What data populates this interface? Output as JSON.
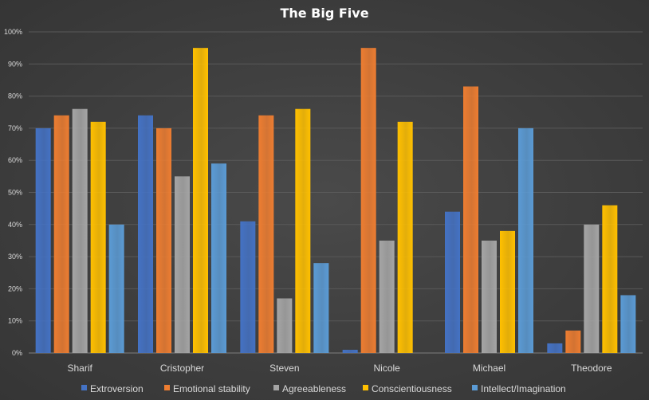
{
  "chart_data": {
    "type": "bar",
    "title": "The Big Five",
    "xlabel": "",
    "ylabel": "",
    "ylim": [
      0,
      100
    ],
    "yticks": [
      "0%",
      "10%",
      "20%",
      "30%",
      "40%",
      "50%",
      "60%",
      "70%",
      "80%",
      "90%",
      "100%"
    ],
    "grid": true,
    "legend_position": "bottom",
    "categories": [
      "Sharif",
      "Cristopher",
      "Steven",
      "Nicole",
      "Michael",
      "Theodore"
    ],
    "series": [
      {
        "name": "Extroversion",
        "color": "#4472c4",
        "values": [
          70,
          74,
          41,
          1,
          44,
          3
        ]
      },
      {
        "name": "Emotional stability",
        "color": "#ed7d31",
        "values": [
          74,
          70,
          74,
          95,
          83,
          7
        ]
      },
      {
        "name": "Agreeableness",
        "color": "#a5a5a5",
        "values": [
          76,
          55,
          17,
          35,
          35,
          40
        ]
      },
      {
        "name": "Conscientiousness",
        "color": "#ffc000",
        "values": [
          72,
          95,
          76,
          72,
          38,
          46
        ]
      },
      {
        "name": "Intellect/Imagination",
        "color": "#5b9bd5",
        "values": [
          40,
          59,
          28,
          0,
          70,
          18
        ]
      }
    ]
  }
}
